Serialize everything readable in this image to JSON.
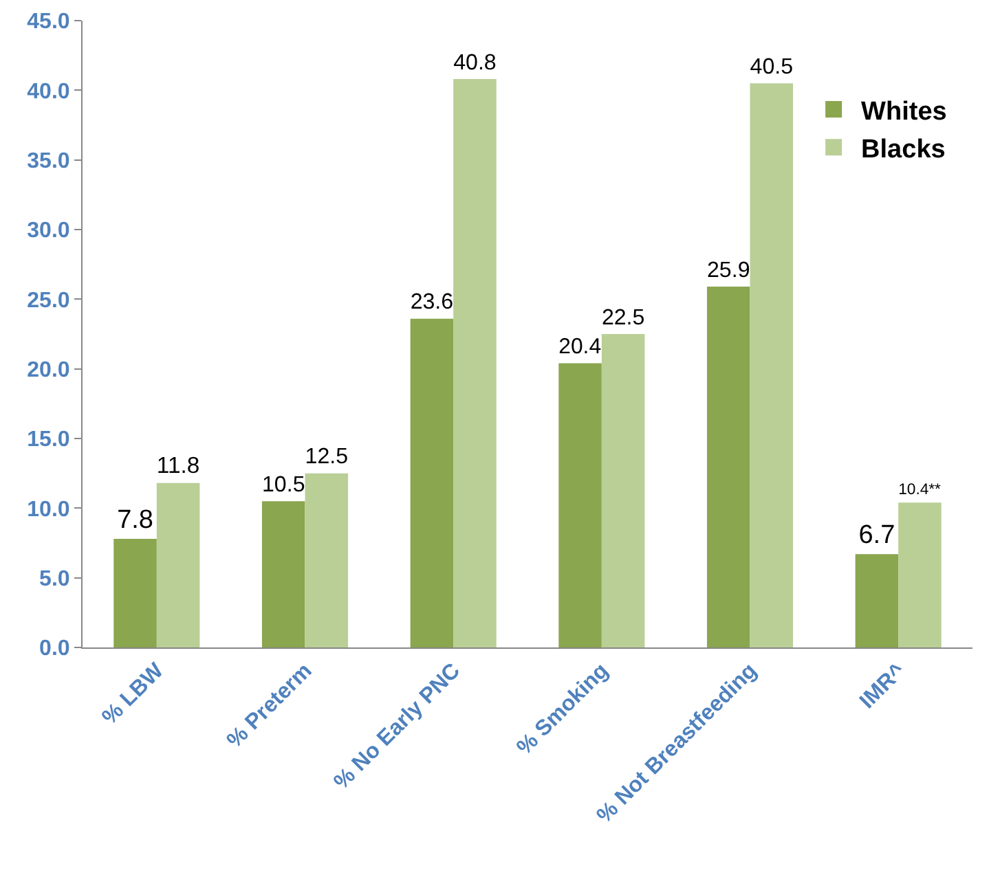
{
  "chart_data": {
    "type": "bar",
    "categories": [
      "% LBW",
      "% Preterm",
      "% No Early PNC",
      "% Smoking",
      "% Not Breastfeeding",
      "IMR^"
    ],
    "series": [
      {
        "name": "Whites",
        "color": "#8aa64e",
        "values": [
          7.8,
          10.5,
          23.6,
          20.4,
          25.9,
          6.7
        ],
        "value_labels": [
          "7.8",
          "10.5",
          "23.6",
          "20.4",
          "25.9",
          "6.7"
        ]
      },
      {
        "name": "Blacks",
        "color": "#b9cf96",
        "values": [
          11.8,
          12.5,
          40.8,
          22.5,
          40.5,
          10.4
        ],
        "value_labels": [
          "11.8",
          "12.5",
          "40.8",
          "22.5",
          "40.5",
          "10.4**"
        ]
      }
    ],
    "ylim": [
      0,
      45
    ],
    "yticks": [
      {
        "value": 0,
        "label": "0.0"
      },
      {
        "value": 5,
        "label": "5.0"
      },
      {
        "value": 10,
        "label": "10.0"
      },
      {
        "value": 15,
        "label": "15.0"
      },
      {
        "value": 20,
        "label": "20.0"
      },
      {
        "value": 25,
        "label": "25.0"
      },
      {
        "value": 30,
        "label": "30.0"
      },
      {
        "value": 35,
        "label": "35.0"
      },
      {
        "value": 40,
        "label": "40.0"
      },
      {
        "value": 45,
        "label": "45.0"
      }
    ],
    "grid": false,
    "legend": "top right"
  }
}
